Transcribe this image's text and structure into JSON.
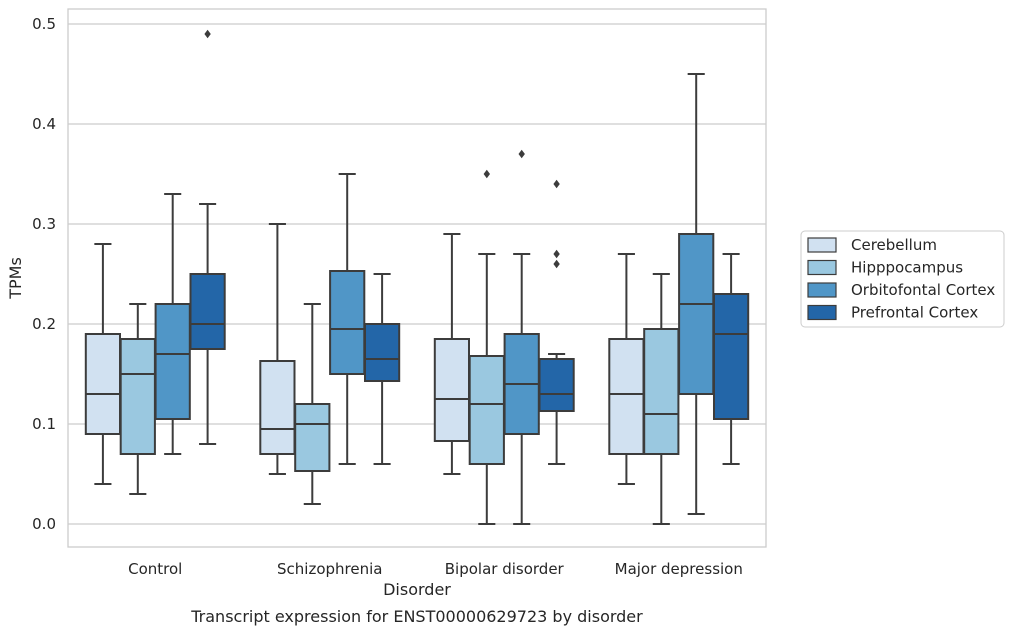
{
  "chart_data": {
    "type": "box",
    "title": "",
    "caption": "Transcript expression for ENST00000629723 by disorder",
    "xlabel": "Disorder",
    "ylabel": "TPMs",
    "ylim": [
      -0.023,
      0.515
    ],
    "yticks": [
      0.0,
      0.1,
      0.2,
      0.3,
      0.4,
      0.5
    ],
    "ytick_labels": [
      "0.0",
      "0.1",
      "0.2",
      "0.3",
      "0.4",
      "0.5"
    ],
    "grid": "horizontal",
    "legend_position": "outside-right",
    "categories": [
      "Control",
      "Schizophrenia",
      "Bipolar disorder",
      "Major depression"
    ],
    "series": [
      {
        "name": "Cerebellum",
        "color": "#d1e1f1",
        "boxes": [
          {
            "whisker_low": 0.04,
            "q1": 0.09,
            "median": 0.13,
            "q3": 0.19,
            "whisker_high": 0.28,
            "outliers": []
          },
          {
            "whisker_low": 0.05,
            "q1": 0.07,
            "median": 0.095,
            "q3": 0.163,
            "whisker_high": 0.3,
            "outliers": []
          },
          {
            "whisker_low": 0.05,
            "q1": 0.083,
            "median": 0.125,
            "q3": 0.185,
            "whisker_high": 0.29,
            "outliers": []
          },
          {
            "whisker_low": 0.04,
            "q1": 0.07,
            "median": 0.13,
            "q3": 0.185,
            "whisker_high": 0.27,
            "outliers": []
          }
        ]
      },
      {
        "name": "Hipppocampus",
        "color": "#9ac8e0",
        "boxes": [
          {
            "whisker_low": 0.03,
            "q1": 0.07,
            "median": 0.15,
            "q3": 0.185,
            "whisker_high": 0.22,
            "outliers": []
          },
          {
            "whisker_low": 0.02,
            "q1": 0.053,
            "median": 0.1,
            "q3": 0.12,
            "whisker_high": 0.22,
            "outliers": []
          },
          {
            "whisker_low": 0.0,
            "q1": 0.06,
            "median": 0.12,
            "q3": 0.168,
            "whisker_high": 0.27,
            "outliers": [
              0.35
            ]
          },
          {
            "whisker_low": 0.0,
            "q1": 0.07,
            "median": 0.11,
            "q3": 0.195,
            "whisker_high": 0.25,
            "outliers": []
          }
        ]
      },
      {
        "name": "Orbitofontal Cortex",
        "color": "#5096c7",
        "boxes": [
          {
            "whisker_low": 0.07,
            "q1": 0.105,
            "median": 0.17,
            "q3": 0.22,
            "whisker_high": 0.33,
            "outliers": []
          },
          {
            "whisker_low": 0.06,
            "q1": 0.15,
            "median": 0.195,
            "q3": 0.253,
            "whisker_high": 0.35,
            "outliers": []
          },
          {
            "whisker_low": 0.0,
            "q1": 0.09,
            "median": 0.14,
            "q3": 0.19,
            "whisker_high": 0.27,
            "outliers": [
              0.37
            ]
          },
          {
            "whisker_low": 0.01,
            "q1": 0.13,
            "median": 0.22,
            "q3": 0.29,
            "whisker_high": 0.45,
            "outliers": []
          }
        ]
      },
      {
        "name": "Prefrontal Cortex",
        "color": "#2366a8",
        "boxes": [
          {
            "whisker_low": 0.08,
            "q1": 0.175,
            "median": 0.2,
            "q3": 0.25,
            "whisker_high": 0.32,
            "outliers": [
              0.49
            ]
          },
          {
            "whisker_low": 0.06,
            "q1": 0.143,
            "median": 0.165,
            "q3": 0.2,
            "whisker_high": 0.25,
            "outliers": []
          },
          {
            "whisker_low": 0.06,
            "q1": 0.113,
            "median": 0.13,
            "q3": 0.165,
            "whisker_high": 0.17,
            "outliers": [
              0.34,
              0.27,
              0.26
            ]
          },
          {
            "whisker_low": 0.06,
            "q1": 0.105,
            "median": 0.19,
            "q3": 0.23,
            "whisker_high": 0.27,
            "outliers": []
          }
        ]
      }
    ]
  }
}
